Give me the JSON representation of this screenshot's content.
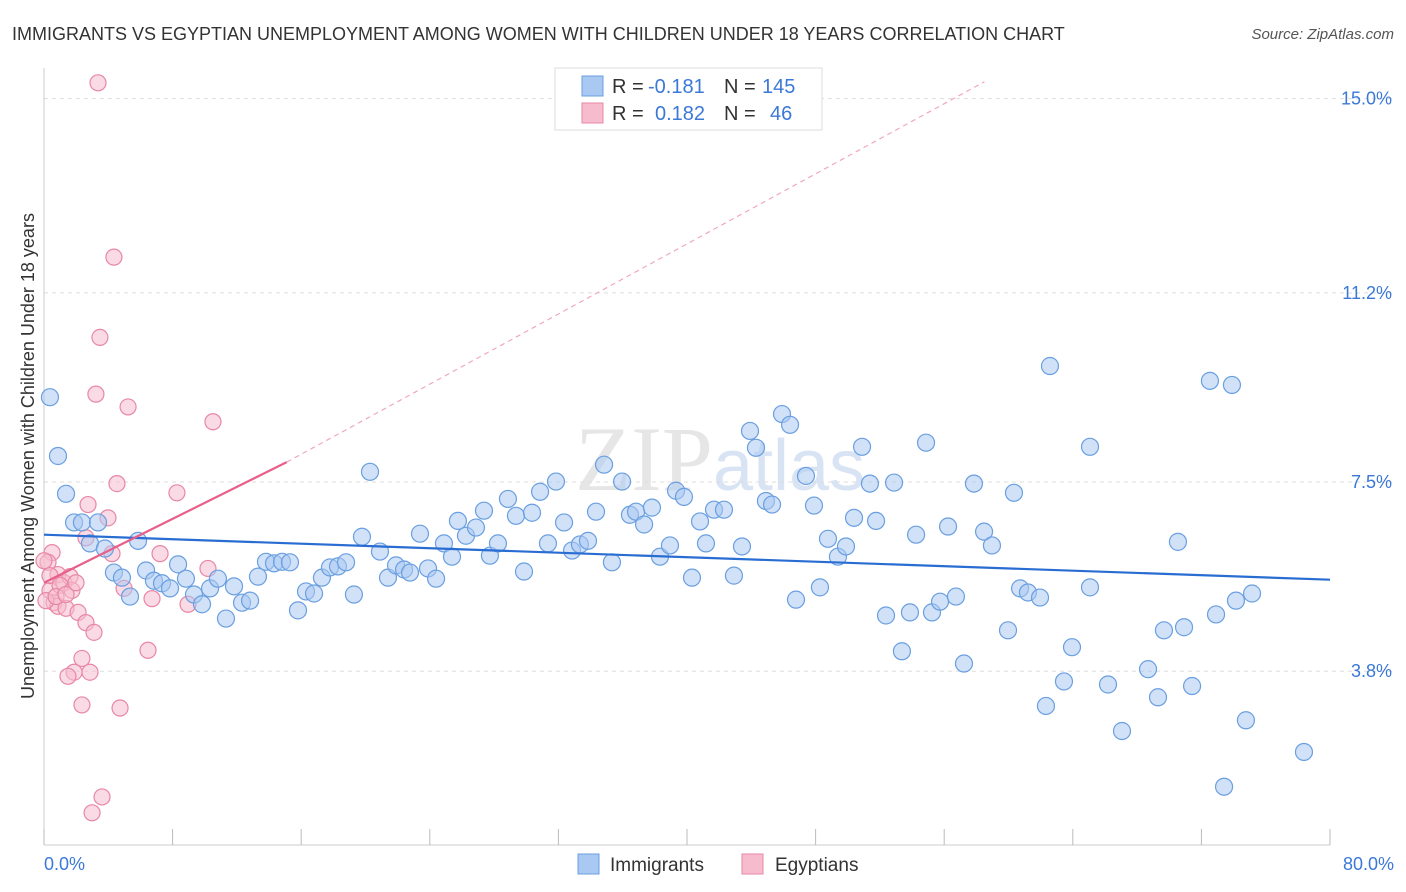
{
  "chart_data": {
    "type": "scatter",
    "title": "IMMIGRANTS VS EGYPTIAN UNEMPLOYMENT AMONG WOMEN WITH CHILDREN UNDER 18 YEARS CORRELATION CHART",
    "source": "Source: ZipAtlas.com",
    "watermark": "ZIPatlas",
    "ylabel": "Unemployment Among Women with Children Under 18 years",
    "xlim": [
      0,
      80
    ],
    "ylim": [
      0.4,
      15.6
    ],
    "x_tick_labels": [
      "0.0%",
      "80.0%"
    ],
    "y_ticks": [
      {
        "value": 15.0,
        "label": "15.0%"
      },
      {
        "value": 11.2,
        "label": "11.2%"
      },
      {
        "value": 7.5,
        "label": "7.5%"
      },
      {
        "value": 3.8,
        "label": "3.8%"
      }
    ],
    "x_minor_ticks": [
      0,
      8,
      16,
      24,
      32,
      40,
      48,
      56,
      64,
      72,
      80
    ],
    "grid": "horizontal dashed",
    "legend_placement": "top-center",
    "colors": {
      "immigrants_fill": "#a9c8f2",
      "immigrants_stroke": "#6a9fe0",
      "immigrants_line": "#2a6dd2",
      "egyptians_fill": "#f6bccd",
      "egyptians_stroke": "#e887a6",
      "egyptians_line": "#e8608a",
      "accent_text": "#3b78d8"
    },
    "legend": {
      "r_label": "R =",
      "n_label": "N =",
      "rows": [
        {
          "name": "Immigrants",
          "r": "-0.181",
          "n": "145"
        },
        {
          "name": "Egyptians",
          "r": "0.182",
          "n": "46"
        }
      ]
    },
    "series": [
      {
        "name": "Immigrants",
        "trend": [
          [
            0,
            6.47
          ],
          [
            80,
            5.59
          ]
        ],
        "points": [
          [
            0.37,
            9.16
          ],
          [
            0.87,
            8.01
          ],
          [
            1.37,
            7.27
          ],
          [
            1.87,
            6.71
          ],
          [
            2.36,
            6.71
          ],
          [
            2.86,
            6.3
          ],
          [
            3.36,
            6.71
          ],
          [
            3.79,
            6.2
          ],
          [
            4.35,
            5.73
          ],
          [
            4.85,
            5.63
          ],
          [
            5.35,
            5.26
          ],
          [
            5.85,
            6.35
          ],
          [
            6.35,
            5.77
          ],
          [
            6.84,
            5.57
          ],
          [
            7.34,
            5.52
          ],
          [
            7.84,
            5.42
          ],
          [
            8.34,
            5.89
          ],
          [
            8.83,
            5.61
          ],
          [
            9.33,
            5.3
          ],
          [
            9.83,
            5.11
          ],
          [
            10.33,
            5.42
          ],
          [
            10.82,
            5.61
          ],
          [
            11.32,
            4.83
          ],
          [
            11.82,
            5.46
          ],
          [
            12.32,
            5.14
          ],
          [
            12.82,
            5.18
          ],
          [
            13.31,
            5.65
          ],
          [
            13.81,
            5.94
          ],
          [
            14.31,
            5.91
          ],
          [
            14.81,
            5.94
          ],
          [
            15.3,
            5.93
          ],
          [
            15.8,
            4.99
          ],
          [
            16.3,
            5.36
          ],
          [
            16.8,
            5.32
          ],
          [
            17.29,
            5.63
          ],
          [
            17.79,
            5.83
          ],
          [
            18.29,
            5.85
          ],
          [
            18.79,
            5.93
          ],
          [
            19.28,
            5.3
          ],
          [
            19.78,
            6.43
          ],
          [
            20.28,
            7.7
          ],
          [
            20.9,
            6.14
          ],
          [
            21.4,
            5.63
          ],
          [
            21.9,
            5.87
          ],
          [
            22.4,
            5.79
          ],
          [
            22.77,
            5.73
          ],
          [
            23.39,
            6.49
          ],
          [
            23.89,
            5.81
          ],
          [
            24.39,
            5.61
          ],
          [
            24.88,
            6.3
          ],
          [
            25.38,
            6.04
          ],
          [
            25.75,
            6.74
          ],
          [
            26.25,
            6.45
          ],
          [
            26.87,
            6.61
          ],
          [
            27.37,
            6.94
          ],
          [
            27.74,
            6.06
          ],
          [
            28.24,
            6.3
          ],
          [
            28.86,
            7.17
          ],
          [
            29.36,
            6.84
          ],
          [
            29.86,
            5.75
          ],
          [
            30.36,
            6.9
          ],
          [
            30.86,
            7.31
          ],
          [
            31.35,
            6.3
          ],
          [
            31.85,
            7.51
          ],
          [
            32.35,
            6.71
          ],
          [
            32.85,
            6.16
          ],
          [
            33.34,
            6.28
          ],
          [
            33.84,
            6.35
          ],
          [
            34.34,
            6.92
          ],
          [
            34.84,
            7.84
          ],
          [
            35.33,
            5.93
          ],
          [
            35.96,
            7.51
          ],
          [
            36.45,
            6.86
          ],
          [
            36.83,
            6.92
          ],
          [
            37.33,
            6.67
          ],
          [
            37.82,
            7.0
          ],
          [
            38.32,
            6.04
          ],
          [
            38.94,
            6.26
          ],
          [
            39.32,
            7.33
          ],
          [
            39.81,
            7.21
          ],
          [
            40.31,
            5.63
          ],
          [
            40.81,
            6.73
          ],
          [
            41.18,
            6.3
          ],
          [
            41.68,
            6.96
          ],
          [
            42.3,
            6.96
          ],
          [
            42.92,
            5.67
          ],
          [
            43.42,
            6.24
          ],
          [
            43.92,
            8.5
          ],
          [
            44.29,
            8.17
          ],
          [
            44.91,
            7.13
          ],
          [
            45.29,
            7.06
          ],
          [
            45.91,
            8.83
          ],
          [
            46.41,
            8.62
          ],
          [
            46.78,
            5.2
          ],
          [
            47.4,
            7.62
          ],
          [
            47.9,
            7.04
          ],
          [
            48.27,
            5.44
          ],
          [
            48.77,
            6.39
          ],
          [
            49.39,
            6.04
          ],
          [
            49.89,
            6.24
          ],
          [
            50.39,
            6.8
          ],
          [
            50.89,
            8.19
          ],
          [
            51.38,
            7.47
          ],
          [
            51.76,
            6.74
          ],
          [
            52.38,
            4.89
          ],
          [
            52.88,
            7.49
          ],
          [
            53.37,
            4.19
          ],
          [
            53.87,
            4.95
          ],
          [
            54.25,
            6.47
          ],
          [
            54.87,
            8.27
          ],
          [
            55.24,
            4.95
          ],
          [
            55.74,
            5.16
          ],
          [
            56.24,
            6.63
          ],
          [
            56.73,
            5.26
          ],
          [
            57.23,
            3.95
          ],
          [
            57.85,
            7.47
          ],
          [
            58.48,
            6.53
          ],
          [
            58.97,
            6.26
          ],
          [
            59.97,
            4.6
          ],
          [
            60.34,
            7.29
          ],
          [
            60.72,
            5.42
          ],
          [
            61.21,
            5.34
          ],
          [
            61.96,
            5.24
          ],
          [
            62.33,
            3.12
          ],
          [
            62.58,
            9.77
          ],
          [
            63.45,
            3.6
          ],
          [
            63.95,
            4.27
          ],
          [
            65.07,
            8.19
          ],
          [
            65.07,
            5.44
          ],
          [
            66.19,
            3.54
          ],
          [
            67.06,
            2.63
          ],
          [
            68.68,
            3.84
          ],
          [
            69.3,
            3.29
          ],
          [
            69.67,
            4.6
          ],
          [
            70.54,
            6.33
          ],
          [
            70.92,
            4.66
          ],
          [
            71.42,
            3.51
          ],
          [
            72.53,
            9.48
          ],
          [
            72.91,
            4.91
          ],
          [
            73.41,
            1.54
          ],
          [
            73.9,
            9.4
          ],
          [
            74.15,
            5.18
          ],
          [
            74.77,
            2.84
          ],
          [
            75.15,
            5.32
          ],
          [
            78.38,
            2.22
          ]
        ]
      },
      {
        "name": "Egyptians",
        "trend": [
          [
            0,
            5.53
          ],
          [
            15.1,
            7.89
          ]
        ],
        "trend_extension": [
          [
            15.1,
            7.89
          ],
          [
            58.5,
            15.33
          ]
        ],
        "points": [
          [
            3.36,
            15.31
          ],
          [
            4.35,
            11.9
          ],
          [
            3.48,
            10.33
          ],
          [
            3.23,
            9.22
          ],
          [
            5.23,
            8.97
          ],
          [
            10.51,
            8.68
          ],
          [
            4.54,
            7.47
          ],
          [
            8.27,
            7.29
          ],
          [
            2.74,
            7.06
          ],
          [
            3.98,
            6.8
          ],
          [
            2.61,
            6.41
          ],
          [
            4.23,
            6.1
          ],
          [
            7.22,
            6.1
          ],
          [
            10.2,
            5.81
          ],
          [
            0.5,
            6.12
          ],
          [
            0.25,
            5.93
          ],
          [
            0.87,
            5.69
          ],
          [
            1.24,
            5.53
          ],
          [
            1.62,
            5.65
          ],
          [
            0.37,
            5.38
          ],
          [
            0.62,
            5.14
          ],
          [
            0.87,
            5.07
          ],
          [
            1.37,
            5.03
          ],
          [
            2.12,
            4.95
          ],
          [
            4.98,
            5.42
          ],
          [
            6.72,
            5.22
          ],
          [
            8.96,
            5.11
          ],
          [
            2.61,
            4.75
          ],
          [
            3.11,
            4.56
          ],
          [
            2.36,
            4.05
          ],
          [
            1.87,
            3.78
          ],
          [
            2.86,
            3.78
          ],
          [
            1.49,
            3.7
          ],
          [
            6.47,
            4.21
          ],
          [
            2.36,
            3.14
          ],
          [
            4.73,
            3.08
          ],
          [
            3.61,
            1.34
          ],
          [
            2.99,
            1.03
          ],
          [
            0.0,
            5.96
          ],
          [
            0.37,
            5.67
          ],
          [
            1.0,
            5.48
          ],
          [
            1.74,
            5.38
          ],
          [
            0.12,
            5.18
          ],
          [
            0.75,
            5.26
          ],
          [
            1.37,
            5.3
          ],
          [
            1.99,
            5.53
          ]
        ]
      }
    ]
  }
}
